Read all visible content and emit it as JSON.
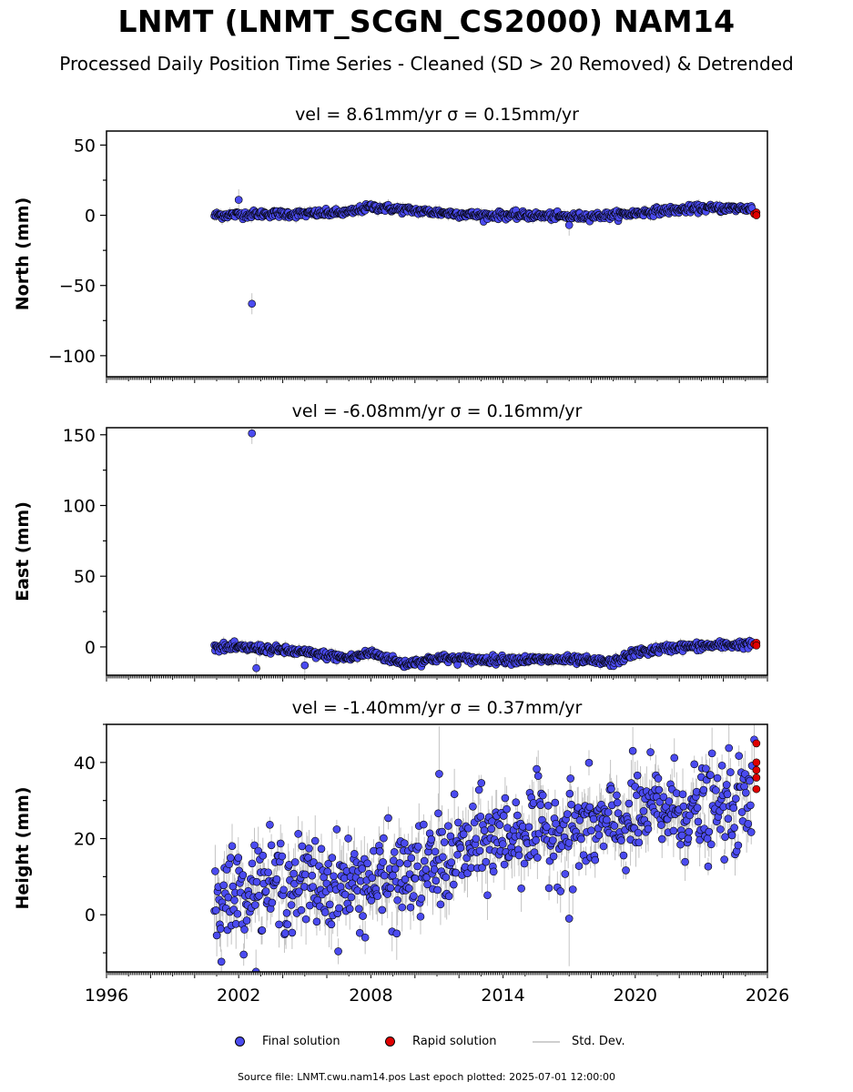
{
  "title": "LNMT (LNMT_SCGN_CS2000) NAM14",
  "subtitle": "Processed Daily Position Time Series - Cleaned (SD > 20 Removed) & Detrended",
  "legend": {
    "final": "Final solution",
    "rapid": "Rapid solution",
    "std": "Std. Dev."
  },
  "footer": "Source file: LNMT.cwu.nam14.pos  Last epoch plotted: 2025-07-01 12:00:00",
  "colors": {
    "final": "#4b4bf0",
    "rapid": "#e00000",
    "std": "#b0b0b0",
    "edge": "#000000"
  },
  "chart_data": [
    {
      "type": "scatter",
      "title": "vel = 8.61mm/yr   σ = 0.15mm/yr",
      "ylabel": "North (mm)",
      "xlim": [
        1996,
        2026
      ],
      "ylim": [
        -115,
        60
      ],
      "yticks": [
        -100,
        -50,
        0,
        50
      ],
      "ytick_labels": [
        "−100",
        "−50",
        "0",
        "50"
      ],
      "xticks": [
        1996,
        2002,
        2008,
        2014,
        2020,
        2026
      ],
      "show_xtick_labels": false,
      "trend": {
        "x": [
          2000.9,
          2003.0,
          2005.0,
          2007.0,
          2008.0,
          2009.5,
          2011.0,
          2013.0,
          2015.0,
          2017.0,
          2019.0,
          2021.0,
          2023.0,
          2025.3
        ],
        "y": [
          0,
          1,
          1,
          2,
          6,
          4,
          2,
          0,
          0,
          -1,
          0,
          3,
          5,
          5
        ]
      },
      "noise": 1.3,
      "err": 3,
      "outliers": [
        {
          "x": 2002.0,
          "y": 11
        },
        {
          "x": 2002.6,
          "y": -63
        },
        {
          "x": 2017.0,
          "y": -7
        }
      ],
      "rapid": [
        {
          "x": 2025.4,
          "y": 1
        },
        {
          "x": 2025.5,
          "y": 2
        },
        {
          "x": 2025.5,
          "y": 0
        }
      ]
    },
    {
      "type": "scatter",
      "title": "vel = -6.08mm/yr   σ = 0.16mm/yr",
      "ylabel": "East (mm)",
      "xlim": [
        1996,
        2026
      ],
      "ylim": [
        -20,
        155
      ],
      "yticks": [
        0,
        50,
        100,
        150
      ],
      "ytick_labels": [
        "0",
        "50",
        "100",
        "150"
      ],
      "xticks": [
        1996,
        2002,
        2008,
        2014,
        2020,
        2026
      ],
      "show_xtick_labels": false,
      "trend": {
        "x": [
          2000.9,
          2003.0,
          2005.0,
          2007.0,
          2008.0,
          2009.5,
          2011.0,
          2013.0,
          2015.0,
          2017.0,
          2019.0,
          2020.0,
          2022.0,
          2025.3
        ],
        "y": [
          0,
          -1,
          -4,
          -8,
          -4,
          -12,
          -8,
          -9,
          -9,
          -9,
          -11,
          -4,
          0,
          2
        ]
      },
      "noise": 1.4,
      "err": 3,
      "outliers": [
        {
          "x": 2002.6,
          "y": 151
        },
        {
          "x": 2002.8,
          "y": -15
        },
        {
          "x": 2005.0,
          "y": -13
        }
      ],
      "rapid": [
        {
          "x": 2025.4,
          "y": 2
        },
        {
          "x": 2025.5,
          "y": 3
        },
        {
          "x": 2025.5,
          "y": 1
        }
      ]
    },
    {
      "type": "scatter",
      "title": "vel = -1.40mm/yr   σ = 0.37mm/yr",
      "ylabel": "Height (mm)",
      "xlim": [
        1996,
        2026
      ],
      "ylim": [
        -15,
        50
      ],
      "yticks": [
        0,
        20,
        40
      ],
      "ytick_labels": [
        "0",
        "20",
        "40"
      ],
      "xticks": [
        1996,
        2002,
        2008,
        2014,
        2020,
        2026
      ],
      "xtick_labels": [
        "1996",
        "2002",
        "2008",
        "2014",
        "2020",
        "2026"
      ],
      "show_xtick_labels": true,
      "trend": {
        "x": [
          2000.9,
          2003.0,
          2005.0,
          2007.0,
          2009.0,
          2011.0,
          2013.0,
          2015.0,
          2017.0,
          2019.0,
          2021.0,
          2023.0,
          2025.3
        ],
        "y": [
          4,
          8,
          8,
          8,
          9,
          13,
          19,
          22,
          22,
          23,
          28,
          27,
          29
        ]
      },
      "noise": 6,
      "err": 5,
      "outliers": [
        {
          "x": 2011.1,
          "y": 37
        },
        {
          "x": 2017.0,
          "y": -1
        },
        {
          "x": 2025.4,
          "y": 46
        }
      ],
      "rapid": [
        {
          "x": 2025.5,
          "y": 33
        },
        {
          "x": 2025.5,
          "y": 36
        },
        {
          "x": 2025.5,
          "y": 38
        },
        {
          "x": 2025.5,
          "y": 40
        },
        {
          "x": 2025.5,
          "y": 45
        }
      ]
    }
  ]
}
